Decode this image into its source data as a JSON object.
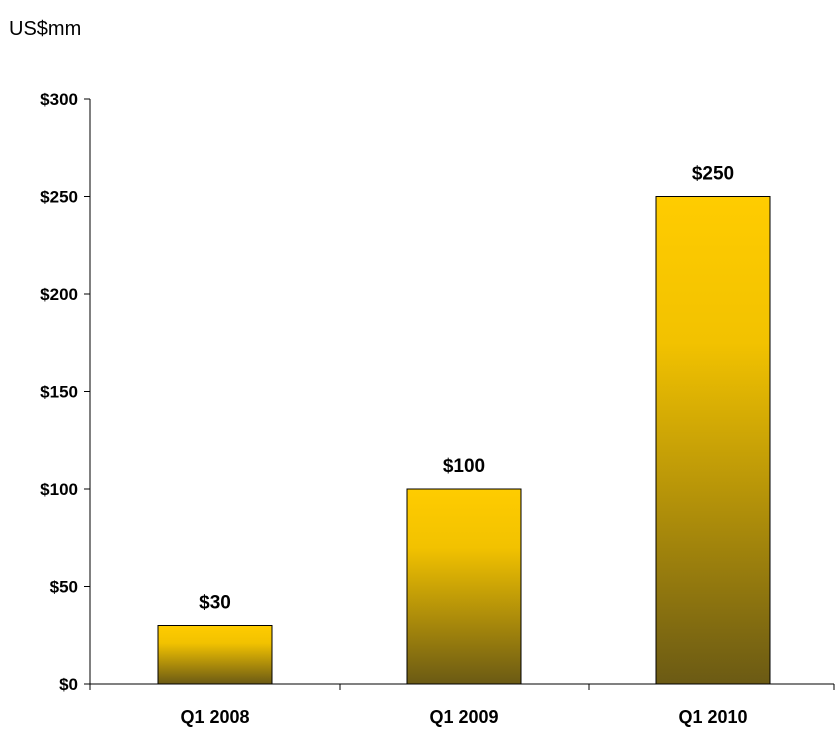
{
  "chart_data": {
    "type": "bar",
    "unit_label": "US$mm",
    "categories": [
      "Q1 2008",
      "Q1 2009",
      "Q1 2010"
    ],
    "values": [
      30,
      100,
      250
    ],
    "data_labels": [
      "$30",
      "$100",
      "$250"
    ],
    "ylim": [
      0,
      300
    ],
    "yticks": [
      0,
      50,
      100,
      150,
      200,
      250,
      300
    ],
    "ytick_labels": [
      "$0",
      "$50",
      "$100",
      "$150",
      "$200",
      "$250",
      "$300"
    ],
    "grid": false,
    "legend": "none",
    "colors": {
      "bar_top": "#FFCC00",
      "bar_bottom": "#6B5A14",
      "bar_outline": "#000000",
      "axis": "#000000"
    }
  }
}
